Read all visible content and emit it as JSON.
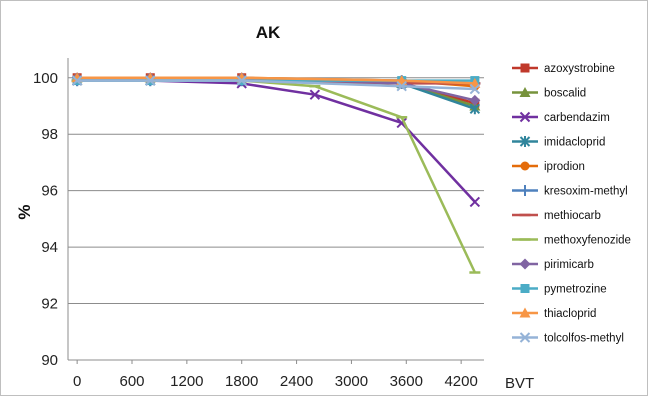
{
  "chart_data": {
    "type": "line",
    "title": "AK",
    "xlabel": "BVT",
    "ylabel": "%",
    "xlim": [
      -100,
      4450
    ],
    "ylim": [
      90,
      100.7
    ],
    "xticks": [
      0,
      600,
      1200,
      1800,
      2400,
      3000,
      3600,
      4200
    ],
    "yticks": [
      90,
      92,
      94,
      96,
      98,
      100
    ],
    "grid": "horizontal",
    "legend_position": "right",
    "series": [
      {
        "name": "azoxystrobine",
        "color": "#c0392b",
        "marker": "square",
        "x": [
          0,
          800,
          1800,
          3550,
          4350
        ],
        "y": [
          100,
          100,
          100,
          99.8,
          99.1
        ]
      },
      {
        "name": "boscalid",
        "color": "#77933c",
        "marker": "triangle",
        "x": [
          0,
          800,
          1800,
          3550,
          4350
        ],
        "y": [
          100,
          100,
          100,
          99.8,
          99.0
        ]
      },
      {
        "name": "carbendazim",
        "color": "#7030a0",
        "marker": "x",
        "x": [
          0,
          800,
          1800,
          2600,
          3550,
          4350
        ],
        "y": [
          99.9,
          99.9,
          99.8,
          99.4,
          98.4,
          95.6
        ]
      },
      {
        "name": "imidacloprid",
        "color": "#31859c",
        "marker": "star",
        "x": [
          0,
          800,
          1800,
          3550,
          4350
        ],
        "y": [
          99.9,
          99.9,
          99.9,
          99.8,
          98.9
        ]
      },
      {
        "name": "iprodion",
        "color": "#e46c0a",
        "marker": "circle",
        "x": [
          0,
          800,
          1800,
          3550,
          4350
        ],
        "y": [
          100,
          100,
          100,
          99.9,
          99.7
        ]
      },
      {
        "name": "kresoxim-methyl",
        "color": "#4f81bd",
        "marker": "plus",
        "x": [
          0,
          800,
          1800,
          3550,
          4350
        ],
        "y": [
          99.9,
          99.9,
          99.9,
          99.9,
          99.8
        ]
      },
      {
        "name": "methiocarb",
        "color": "#c0504d",
        "marker": "dash",
        "x": [
          0,
          800,
          1800,
          3550,
          4350
        ],
        "y": [
          99.9,
          99.9,
          99.9,
          99.8,
          99.8
        ]
      },
      {
        "name": "methoxyfenozide",
        "color": "#9bbb59",
        "marker": "dash",
        "x": [
          0,
          800,
          1800,
          2600,
          3550,
          4350
        ],
        "y": [
          99.9,
          99.9,
          99.9,
          99.7,
          98.6,
          93.1
        ]
      },
      {
        "name": "pirimicarb",
        "color": "#8064a2",
        "marker": "diamond",
        "x": [
          0,
          800,
          1800,
          3550,
          4350
        ],
        "y": [
          100,
          100,
          100,
          99.8,
          99.2
        ]
      },
      {
        "name": "pymetrozine",
        "color": "#4bacc6",
        "marker": "square",
        "x": [
          0,
          800,
          1800,
          3550,
          4350
        ],
        "y": [
          99.9,
          99.9,
          99.9,
          99.9,
          99.9
        ]
      },
      {
        "name": "thiacloprid",
        "color": "#f79646",
        "marker": "triangle",
        "x": [
          0,
          800,
          1800,
          3550,
          4350
        ],
        "y": [
          100,
          100,
          100,
          99.9,
          99.8
        ]
      },
      {
        "name": "tolcolfos-methyl",
        "color": "#95b3d7",
        "marker": "x",
        "x": [
          0,
          800,
          1800,
          3550,
          4350
        ],
        "y": [
          99.9,
          99.9,
          99.9,
          99.7,
          99.6
        ]
      }
    ]
  }
}
